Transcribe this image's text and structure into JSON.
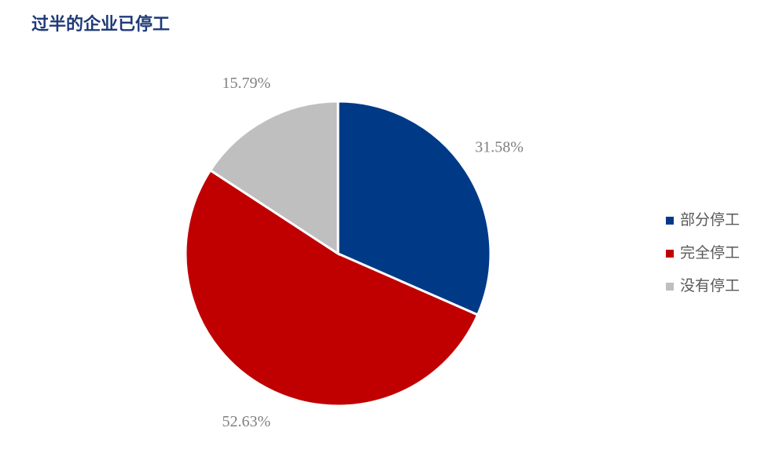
{
  "chart_data": {
    "type": "pie",
    "title": "过半的企业已停工",
    "categories": [
      "部分停工",
      "完全停工",
      "没有停工"
    ],
    "values": [
      31.58,
      52.63,
      15.79
    ],
    "value_labels": [
      "31.58%",
      "52.63%",
      "15.79%"
    ],
    "colors": [
      "#003a86",
      "#c00000",
      "#bfbfbf"
    ],
    "legend": "right"
  }
}
